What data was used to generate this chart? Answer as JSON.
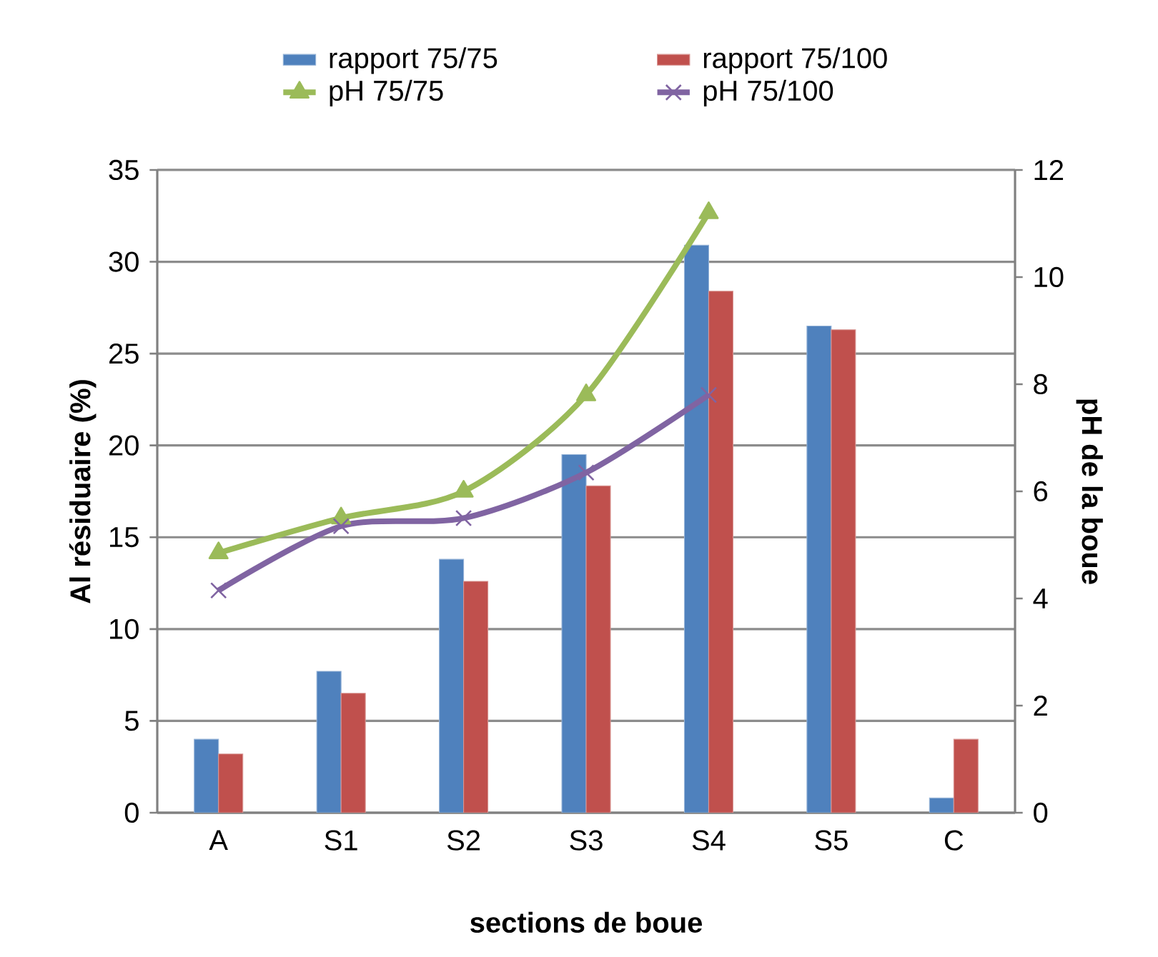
{
  "chart_data": {
    "type": "bar",
    "xlabel": "sections  de boue",
    "ylabel": "Al résiduaire (%)",
    "y2label": "pH de la boue",
    "categories": [
      "A",
      "S1",
      "S2",
      "S3",
      "S4",
      "S5",
      "C"
    ],
    "series": [
      {
        "name": "rapport 75/75",
        "color": "#4f81bd",
        "values": [
          4.0,
          7.7,
          13.8,
          19.5,
          30.9,
          26.5,
          0.8
        ]
      },
      {
        "name": "rapport 75/100",
        "color": "#c0504d",
        "values": [
          3.2,
          6.5,
          12.6,
          17.8,
          28.4,
          26.3,
          4.0
        ]
      },
      {
        "name": "pH 75/75",
        "type": "line",
        "axis": "y2",
        "color": "#9bbb59",
        "marker": "triangle",
        "values": [
          4.85,
          5.5,
          6.0,
          7.8,
          11.2,
          null,
          null
        ]
      },
      {
        "name": "pH 75/100",
        "type": "line",
        "axis": "y2",
        "color": "#8064a2",
        "marker": "cross",
        "values": [
          4.15,
          5.35,
          5.5,
          6.35,
          7.8,
          null,
          null
        ]
      }
    ],
    "ylim": [
      0,
      35
    ],
    "yticks": [
      0,
      5,
      10,
      15,
      20,
      25,
      30,
      35
    ],
    "y2lim": [
      0,
      12
    ],
    "y2ticks": [
      0,
      2,
      4,
      6,
      8,
      10,
      12
    ],
    "grid": "y",
    "legend": "top"
  }
}
